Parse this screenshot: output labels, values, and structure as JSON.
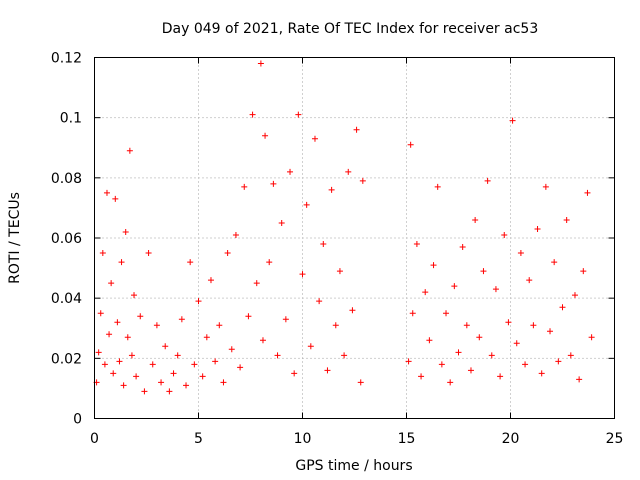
{
  "chart_data": {
    "type": "scatter",
    "title": "Day 049 of 2021, Rate Of TEC Index for receiver ac53",
    "xlabel": "GPS time / hours",
    "ylabel": "ROTI / TECUs",
    "xlim": [
      0,
      25
    ],
    "ylim": [
      0,
      0.12
    ],
    "xticks": [
      0,
      5,
      10,
      15,
      20,
      25
    ],
    "xtick_labels": [
      "0",
      "5",
      "10",
      "15",
      "20",
      "25"
    ],
    "yticks": [
      0,
      0.02,
      0.04,
      0.06,
      0.08,
      0.1,
      0.12
    ],
    "ytick_labels": [
      "0",
      "0.02",
      "0.04",
      "0.06",
      "0.08",
      "0.1",
      "0.12"
    ],
    "grid": true,
    "marker": "plus",
    "marker_color": "#ff0000",
    "data_gap_hours": [
      13.0,
      15.1
    ],
    "series": [
      {
        "name": "ROTI",
        "points": [
          [
            0.1,
            0.012
          ],
          [
            0.2,
            0.022
          ],
          [
            0.3,
            0.035
          ],
          [
            0.4,
            0.055
          ],
          [
            0.5,
            0.018
          ],
          [
            0.6,
            0.075
          ],
          [
            0.7,
            0.028
          ],
          [
            0.8,
            0.045
          ],
          [
            0.9,
            0.015
          ],
          [
            1.0,
            0.073
          ],
          [
            1.1,
            0.032
          ],
          [
            1.2,
            0.019
          ],
          [
            1.3,
            0.052
          ],
          [
            1.4,
            0.011
          ],
          [
            1.5,
            0.062
          ],
          [
            1.6,
            0.027
          ],
          [
            1.7,
            0.089
          ],
          [
            1.8,
            0.021
          ],
          [
            1.9,
            0.041
          ],
          [
            2.0,
            0.014
          ],
          [
            2.2,
            0.034
          ],
          [
            2.4,
            0.009
          ],
          [
            2.6,
            0.055
          ],
          [
            2.8,
            0.018
          ],
          [
            3.0,
            0.031
          ],
          [
            3.2,
            0.012
          ],
          [
            3.4,
            0.024
          ],
          [
            3.6,
            0.009
          ],
          [
            3.8,
            0.015
          ],
          [
            4.0,
            0.021
          ],
          [
            4.2,
            0.033
          ],
          [
            4.4,
            0.011
          ],
          [
            4.6,
            0.052
          ],
          [
            4.8,
            0.018
          ],
          [
            5.0,
            0.039
          ],
          [
            5.2,
            0.014
          ],
          [
            5.4,
            0.027
          ],
          [
            5.6,
            0.046
          ],
          [
            5.8,
            0.019
          ],
          [
            6.0,
            0.031
          ],
          [
            6.2,
            0.012
          ],
          [
            6.4,
            0.055
          ],
          [
            6.6,
            0.023
          ],
          [
            6.8,
            0.061
          ],
          [
            7.0,
            0.017
          ],
          [
            7.2,
            0.077
          ],
          [
            7.4,
            0.034
          ],
          [
            7.6,
            0.101
          ],
          [
            7.8,
            0.045
          ],
          [
            8.0,
            0.118
          ],
          [
            8.1,
            0.026
          ],
          [
            8.2,
            0.094
          ],
          [
            8.4,
            0.052
          ],
          [
            8.6,
            0.078
          ],
          [
            8.8,
            0.021
          ],
          [
            9.0,
            0.065
          ],
          [
            9.2,
            0.033
          ],
          [
            9.4,
            0.082
          ],
          [
            9.6,
            0.015
          ],
          [
            9.8,
            0.101
          ],
          [
            10.0,
            0.048
          ],
          [
            10.2,
            0.071
          ],
          [
            10.4,
            0.024
          ],
          [
            10.6,
            0.093
          ],
          [
            10.8,
            0.039
          ],
          [
            11.0,
            0.058
          ],
          [
            11.2,
            0.016
          ],
          [
            11.4,
            0.076
          ],
          [
            11.6,
            0.031
          ],
          [
            11.8,
            0.049
          ],
          [
            12.0,
            0.021
          ],
          [
            12.2,
            0.082
          ],
          [
            12.4,
            0.036
          ],
          [
            12.6,
            0.096
          ],
          [
            12.8,
            0.012
          ],
          [
            12.9,
            0.079
          ],
          [
            15.1,
            0.019
          ],
          [
            15.2,
            0.091
          ],
          [
            15.3,
            0.035
          ],
          [
            15.5,
            0.058
          ],
          [
            15.7,
            0.014
          ],
          [
            15.9,
            0.042
          ],
          [
            16.1,
            0.026
          ],
          [
            16.3,
            0.051
          ],
          [
            16.5,
            0.077
          ],
          [
            16.7,
            0.018
          ],
          [
            16.9,
            0.035
          ],
          [
            17.1,
            0.012
          ],
          [
            17.3,
            0.044
          ],
          [
            17.5,
            0.022
          ],
          [
            17.7,
            0.057
          ],
          [
            17.9,
            0.031
          ],
          [
            18.1,
            0.016
          ],
          [
            18.3,
            0.066
          ],
          [
            18.5,
            0.027
          ],
          [
            18.7,
            0.049
          ],
          [
            18.9,
            0.079
          ],
          [
            19.1,
            0.021
          ],
          [
            19.3,
            0.043
          ],
          [
            19.5,
            0.014
          ],
          [
            19.7,
            0.061
          ],
          [
            19.9,
            0.032
          ],
          [
            20.1,
            0.099
          ],
          [
            20.3,
            0.025
          ],
          [
            20.5,
            0.055
          ],
          [
            20.7,
            0.018
          ],
          [
            20.9,
            0.046
          ],
          [
            21.1,
            0.031
          ],
          [
            21.3,
            0.063
          ],
          [
            21.5,
            0.015
          ],
          [
            21.7,
            0.077
          ],
          [
            21.9,
            0.029
          ],
          [
            22.1,
            0.052
          ],
          [
            22.3,
            0.019
          ],
          [
            22.5,
            0.037
          ],
          [
            22.7,
            0.066
          ],
          [
            22.9,
            0.021
          ],
          [
            23.1,
            0.041
          ],
          [
            23.3,
            0.013
          ],
          [
            23.5,
            0.049
          ],
          [
            23.7,
            0.075
          ],
          [
            23.9,
            0.027
          ]
        ]
      }
    ]
  }
}
